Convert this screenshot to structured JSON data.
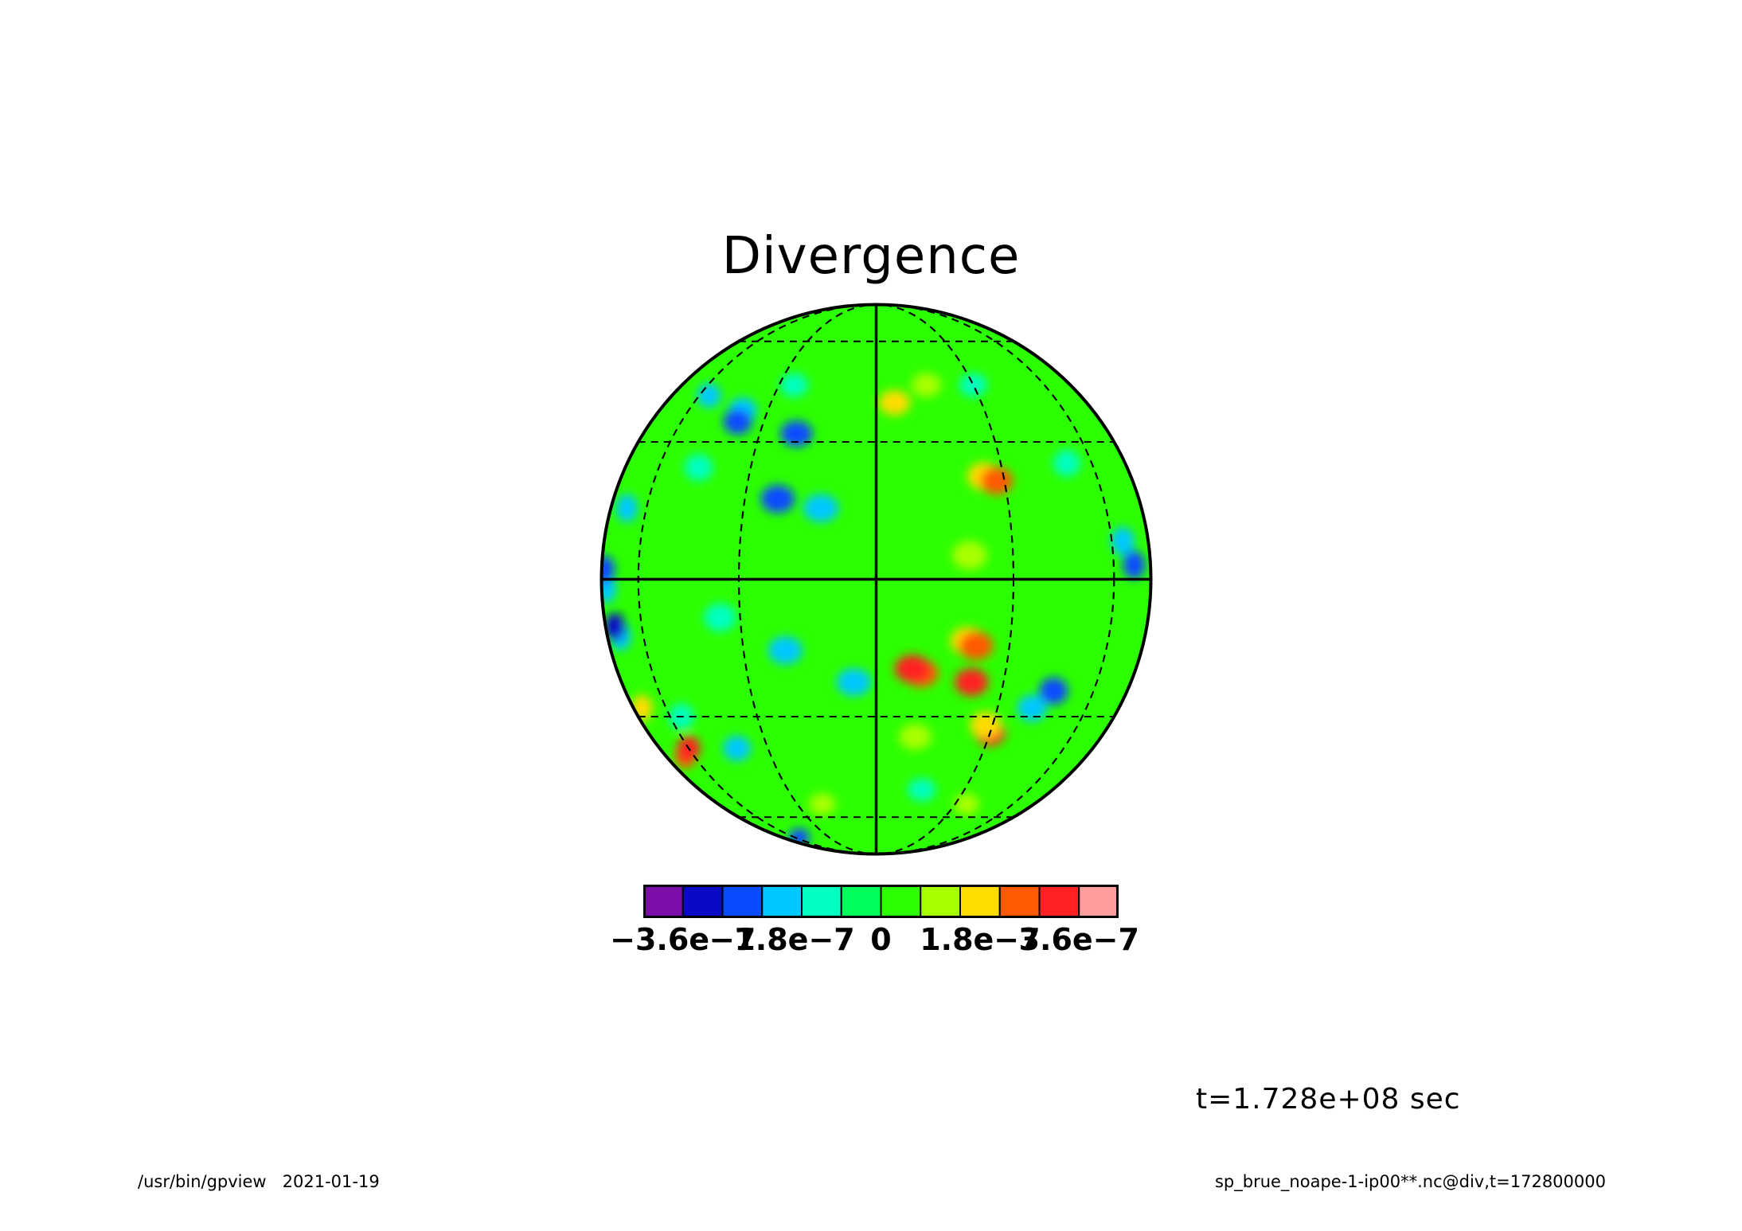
{
  "title": "Divergence",
  "time_label": "t=1.728e+08 sec",
  "footer": {
    "program": "/usr/bin/gpview",
    "date": "2021-01-19",
    "source": "sp_brue_noape-1-ip00**.nc@div,t=172800000"
  },
  "projection": "orthographic",
  "colorbar": {
    "colors": [
      "#7b0ea8",
      "#0a0ac6",
      "#0a4bff",
      "#00c8ff",
      "#00ffc0",
      "#00ff5a",
      "#2cff00",
      "#a8ff00",
      "#ffdc00",
      "#ff5a00",
      "#ff2222",
      "#ff9c9c"
    ],
    "ticks": [
      {
        "label": "−3.6e−7",
        "value": -3.6e-07
      },
      {
        "label": "−1.8e−7",
        "value": -1.8e-07
      },
      {
        "label": "0",
        "value": 0
      },
      {
        "label": "1.8e−7",
        "value": 1.8e-07
      },
      {
        "label": "3.6e−7",
        "value": 3.6e-07
      }
    ],
    "min": -3.6e-07,
    "max": 3.6e-07
  },
  "features": {
    "background_color": "#2cff00",
    "patches": [
      {
        "lon": -25,
        "lat": 45,
        "color": "#00ffc0"
      },
      {
        "lon": -55,
        "lat": 42,
        "color": "#00c8ff"
      },
      {
        "lon": -38,
        "lat": 38,
        "color": "#00c8ff"
      },
      {
        "lon": -38,
        "lat": 35,
        "color": "#0a4bff"
      },
      {
        "lon": -20,
        "lat": 32,
        "color": "#0a4bff"
      },
      {
        "lon": -45,
        "lat": 24,
        "color": "#00ffc0"
      },
      {
        "lon": -12,
        "lat": 15,
        "color": "#00c8ff"
      },
      {
        "lon": -22,
        "lat": 17,
        "color": "#0a4bff"
      },
      {
        "lon": -70,
        "lat": 15,
        "color": "#00c8ff"
      },
      {
        "lon": -80,
        "lat": -2,
        "color": "#00c8ff"
      },
      {
        "lon": -82,
        "lat": 2,
        "color": "#0a4bff"
      },
      {
        "lon": -72,
        "lat": -12,
        "color": "#00c8ff"
      },
      {
        "lon": -75,
        "lat": -10,
        "color": "#0a0ac6"
      },
      {
        "lon": -35,
        "lat": -8,
        "color": "#00ffc0"
      },
      {
        "lon": -20,
        "lat": -15,
        "color": "#00c8ff"
      },
      {
        "lon": -5,
        "lat": -22,
        "color": "#00c8ff"
      },
      {
        "lon": -40,
        "lat": -38,
        "color": "#00c8ff"
      },
      {
        "lon": -55,
        "lat": -30,
        "color": "#00ffc0"
      },
      {
        "lon": -55,
        "lat": -70,
        "color": "#0a4bff"
      },
      {
        "lon": -65,
        "lat": -40,
        "color": "#ff5a00"
      },
      {
        "lon": -60,
        "lat": -38,
        "color": "#ff2222"
      },
      {
        "lon": -75,
        "lat": -28,
        "color": "#ffdc00"
      },
      {
        "lon": 5,
        "lat": 40,
        "color": "#ffdc00"
      },
      {
        "lon": 15,
        "lat": 45,
        "color": "#a8ff00"
      },
      {
        "lon": 30,
        "lat": 45,
        "color": "#00ffc0"
      },
      {
        "lon": 25,
        "lat": 22,
        "color": "#ffdc00"
      },
      {
        "lon": 28,
        "lat": 21,
        "color": "#ff5a00"
      },
      {
        "lon": 50,
        "lat": 25,
        "color": "#00ffc0"
      },
      {
        "lon": 20,
        "lat": 5,
        "color": "#a8ff00"
      },
      {
        "lon": 65,
        "lat": 8,
        "color": "#00c8ff"
      },
      {
        "lon": 70,
        "lat": 3,
        "color": "#0a4bff"
      },
      {
        "lon": 20,
        "lat": -13,
        "color": "#ffdc00"
      },
      {
        "lon": 22,
        "lat": -14,
        "color": "#ff5a00"
      },
      {
        "lon": 10,
        "lat": -20,
        "color": "#ff5a00"
      },
      {
        "lon": 8,
        "lat": -19,
        "color": "#ff2222"
      },
      {
        "lon": 22,
        "lat": -22,
        "color": "#ff2222"
      },
      {
        "lon": 30,
        "lat": -34,
        "color": "#ff2222"
      },
      {
        "lon": 28,
        "lat": -32,
        "color": "#ffdc00"
      },
      {
        "lon": 10,
        "lat": -35,
        "color": "#a8ff00"
      },
      {
        "lon": 40,
        "lat": -28,
        "color": "#00c8ff"
      },
      {
        "lon": 45,
        "lat": -24,
        "color": "#0a4bff"
      },
      {
        "lon": 15,
        "lat": -50,
        "color": "#00ffc0"
      },
      {
        "lon": -20,
        "lat": -55,
        "color": "#a8ff00"
      },
      {
        "lon": 35,
        "lat": -55,
        "color": "#a8ff00"
      }
    ]
  }
}
